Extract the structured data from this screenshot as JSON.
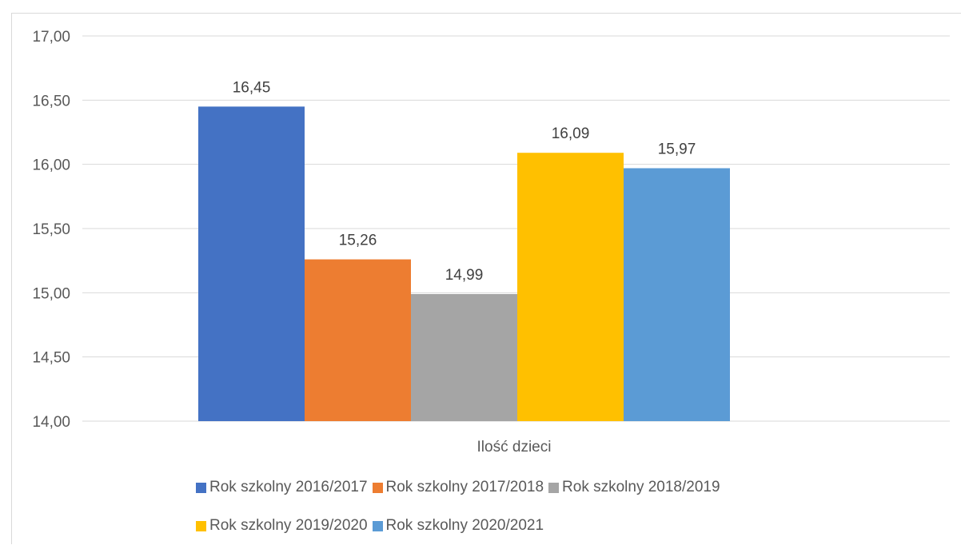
{
  "chart_data": {
    "type": "bar",
    "title": "",
    "xlabel": "",
    "ylabel": "",
    "categories": [
      "Ilość dzieci"
    ],
    "ylim": [
      14.0,
      17.0
    ],
    "ytick_step": 0.5,
    "ytick_labels": [
      "14,00",
      "14,50",
      "15,00",
      "15,50",
      "16,00",
      "16,50",
      "17,00"
    ],
    "grid": true,
    "legend_position": "bottom",
    "series": [
      {
        "name": "Rok szkolny 2016/2017",
        "values": [
          16.45
        ],
        "label": "16,45",
        "color": "#4472c4"
      },
      {
        "name": "Rok szkolny 2017/2018",
        "values": [
          15.26
        ],
        "label": "15,26",
        "color": "#ed7d31"
      },
      {
        "name": "Rok szkolny 2018/2019",
        "values": [
          14.99
        ],
        "label": "14,99",
        "color": "#a5a5a5"
      },
      {
        "name": "Rok szkolny 2019/2020",
        "values": [
          16.09
        ],
        "label": "16,09",
        "color": "#ffc000"
      },
      {
        "name": "Rok szkolny 2020/2021",
        "values": [
          15.97
        ],
        "label": "15,97",
        "color": "#5b9bd5"
      }
    ]
  }
}
